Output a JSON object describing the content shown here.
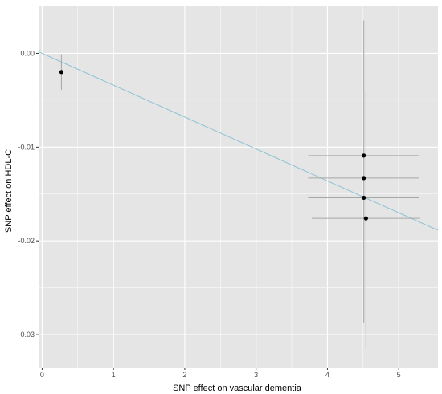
{
  "chart_data": {
    "type": "scatter",
    "title": "",
    "xlabel": "SNP effect on vascular dementia",
    "ylabel": "SNP effect on HDL-C",
    "xlim": [
      -0.05,
      5.55
    ],
    "ylim": [
      -0.0335,
      0.005
    ],
    "x_ticks": [
      0,
      1,
      2,
      3,
      4,
      5
    ],
    "x_tick_labels": [
      "0",
      "1",
      "2",
      "3",
      "4",
      "5"
    ],
    "y_ticks": [
      0.0,
      -0.01,
      -0.02,
      -0.03
    ],
    "y_tick_labels": [
      "0.00",
      "-0.01",
      "-0.02",
      "-0.03"
    ],
    "grid": true,
    "legend": "none",
    "points": [
      {
        "x": 0.27,
        "y": -0.002,
        "x_low": 0.27,
        "x_high": 0.27,
        "y_low": -0.0039,
        "y_high": -0.0001
      },
      {
        "x": 4.51,
        "y": -0.0109,
        "x_low": 3.73,
        "x_high": 5.28,
        "y_low": -0.0287,
        "y_high": 0.0035
      },
      {
        "x": 4.51,
        "y": -0.0133,
        "x_low": 3.73,
        "x_high": 5.28,
        "y_low": -0.0133,
        "y_high": -0.0133
      },
      {
        "x": 4.51,
        "y": -0.0154,
        "x_low": 3.73,
        "x_high": 5.28,
        "y_low": -0.0154,
        "y_high": -0.0154
      },
      {
        "x": 4.54,
        "y": -0.0176,
        "x_low": 3.78,
        "x_high": 5.3,
        "y_low": -0.0314,
        "y_high": -0.004
      }
    ],
    "fit_line": {
      "intercept": 0.0,
      "slope": -0.0034
    },
    "colors": {
      "panel": "#e5e5e5",
      "grid": "#ffffff",
      "point": "#000000",
      "errorbar": "#a6a6a6",
      "fit_line": "#93c4d6"
    }
  }
}
